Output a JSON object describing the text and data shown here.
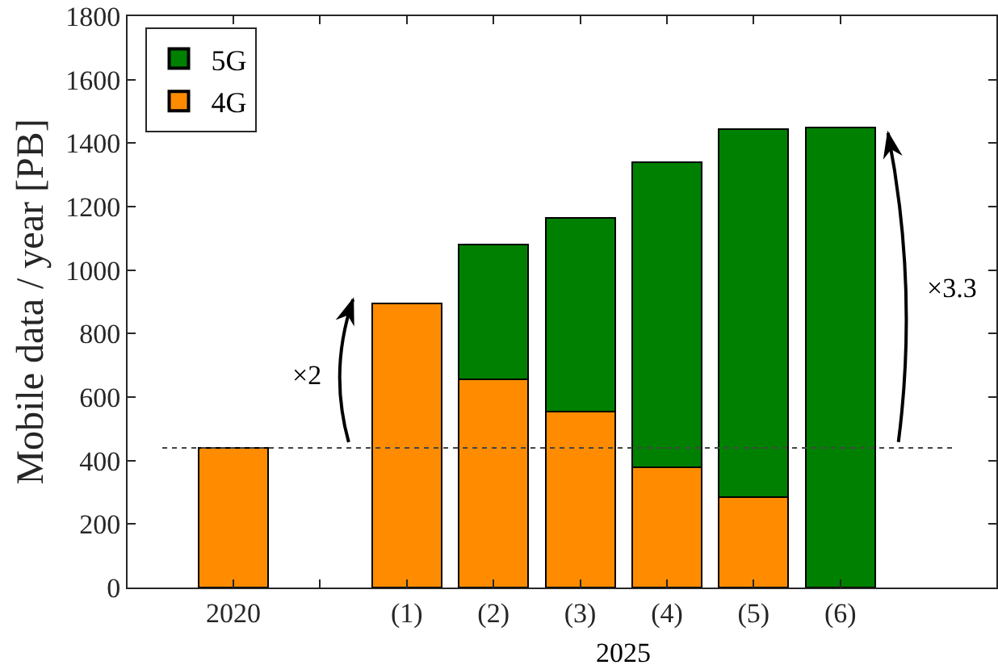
{
  "chart_data": {
    "type": "bar",
    "stacked": true,
    "categories": [
      "2020",
      null,
      "(1)",
      "(2)",
      "(3)",
      "(4)",
      "(5)",
      "(6)"
    ],
    "series": [
      {
        "name": "4G",
        "color": "#ff8c00",
        "values": [
          440,
          null,
          895,
          655,
          555,
          380,
          285,
          0
        ]
      },
      {
        "name": "5G",
        "color": "#008000",
        "values": [
          null,
          null,
          null,
          425,
          610,
          960,
          1160,
          1450
        ]
      }
    ],
    "ylabel": "Mobile data / year [PB]",
    "xlabel": "2025",
    "ylim": [
      0,
      1800
    ],
    "yticks": [
      0,
      200,
      400,
      600,
      800,
      1000,
      1200,
      1400,
      1600,
      1800
    ],
    "legend": "top left",
    "ref_lines": [
      {
        "axis": "y",
        "value": 440,
        "line_style": "dotted",
        "color": "#444444"
      }
    ],
    "annotations": [
      "×2",
      "×3.3"
    ]
  }
}
